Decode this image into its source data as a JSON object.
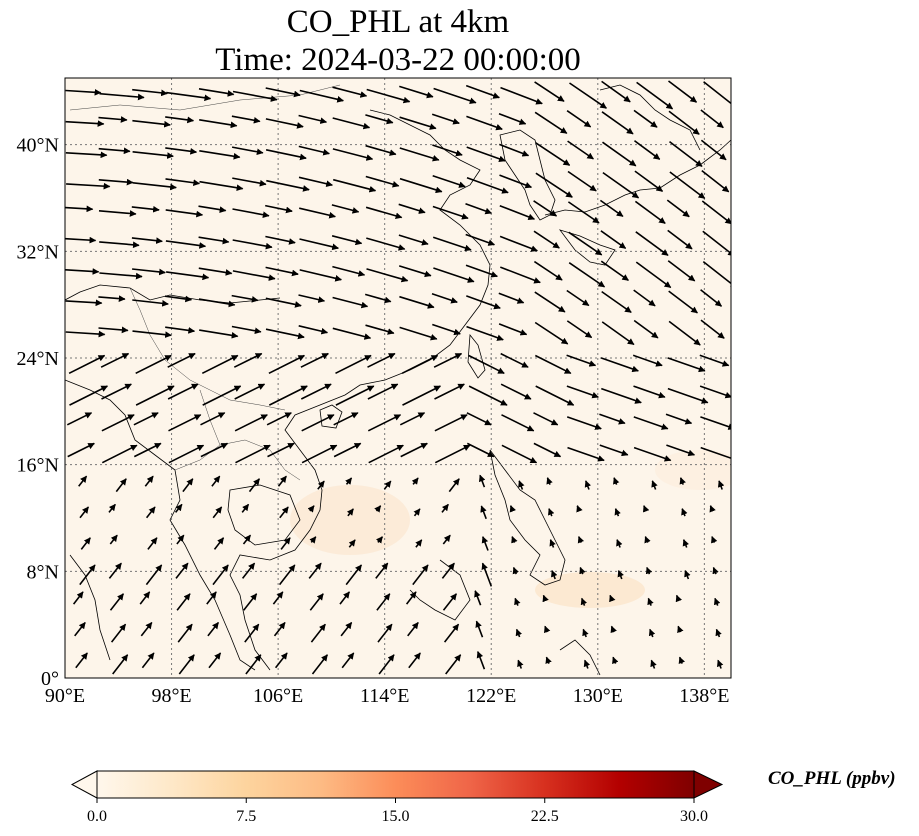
{
  "title": {
    "line1": "CO_PHL at 4km",
    "line2": "Time: 2024-03-22 00:00:00"
  },
  "map": {
    "projection": "PlateCarree",
    "lon_range": [
      90,
      140
    ],
    "lat_range": [
      0,
      45
    ],
    "gridlines": true,
    "field": "CO_PHL",
    "overlay": "wind vectors"
  },
  "axes": {
    "x_ticks": [
      "90°E",
      "98°E",
      "106°E",
      "114°E",
      "122°E",
      "130°E",
      "138°E"
    ],
    "y_ticks": [
      "0°",
      "8°N",
      "16°N",
      "24°N",
      "32°N",
      "40°N"
    ]
  },
  "colorbar": {
    "label": "CO_PHL (ppbv)",
    "ticks": [
      "0.0",
      "7.5",
      "15.0",
      "22.5",
      "30.0"
    ],
    "range": [
      0,
      30
    ],
    "extend": "both",
    "colormap": [
      "#fff7ec",
      "#fee8c8",
      "#fdd49e",
      "#fdbb84",
      "#fc8d59",
      "#ef6548",
      "#d7301f",
      "#b30000",
      "#7f0000"
    ]
  }
}
